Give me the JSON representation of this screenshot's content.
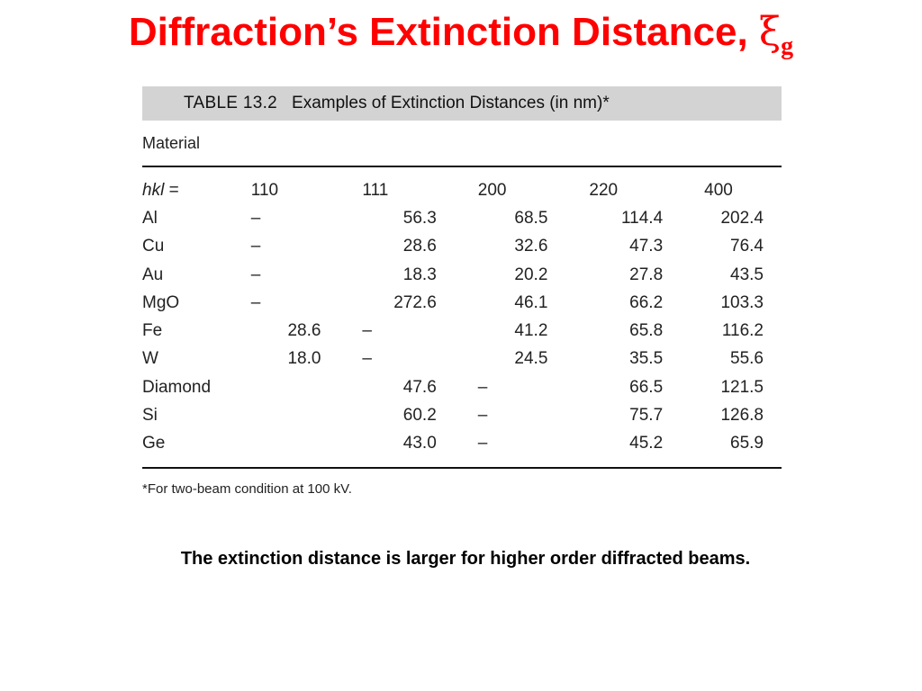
{
  "slide": {
    "title_text": "Diffraction’s Extinction Distance, ",
    "title_symbol": "ξ",
    "title_subscript": "g"
  },
  "table": {
    "caption_number": "TABLE 13.2",
    "caption_title": "Examples of Extinction Distances (in nm)*",
    "material_label": "Material",
    "header": {
      "label": "hkl =",
      "columns": [
        "110",
        "111",
        "200",
        "220",
        "400"
      ]
    },
    "rows": [
      {
        "material": "Al",
        "values": [
          "–",
          "56.3",
          "68.5",
          "114.4",
          "202.4"
        ]
      },
      {
        "material": "Cu",
        "values": [
          "–",
          "28.6",
          "32.6",
          "47.3",
          "76.4"
        ]
      },
      {
        "material": "Au",
        "values": [
          "–",
          "18.3",
          "20.2",
          "27.8",
          "43.5"
        ]
      },
      {
        "material": "MgO",
        "values": [
          "–",
          "272.6",
          "46.1",
          "66.2",
          "103.3"
        ]
      },
      {
        "material": "Fe",
        "values": [
          "28.6",
          "–",
          "41.2",
          "65.8",
          "116.2"
        ]
      },
      {
        "material": "W",
        "values": [
          "18.0",
          "–",
          "24.5",
          "35.5",
          "55.6"
        ]
      },
      {
        "material": "Diamond",
        "values": [
          "",
          "47.6",
          "–",
          "66.5",
          "121.5"
        ]
      },
      {
        "material": "Si",
        "values": [
          "",
          "60.2",
          "–",
          "75.7",
          "126.8"
        ]
      },
      {
        "material": "Ge",
        "values": [
          "",
          "43.0",
          "–",
          "45.2",
          "65.9"
        ]
      }
    ],
    "footnote": "*For two-beam condition at 100 kV."
  },
  "note": "The extinction distance is larger for higher order diffracted beams.",
  "colors": {
    "title": "#ff0000",
    "caption_bar": "#d3d3d3"
  }
}
